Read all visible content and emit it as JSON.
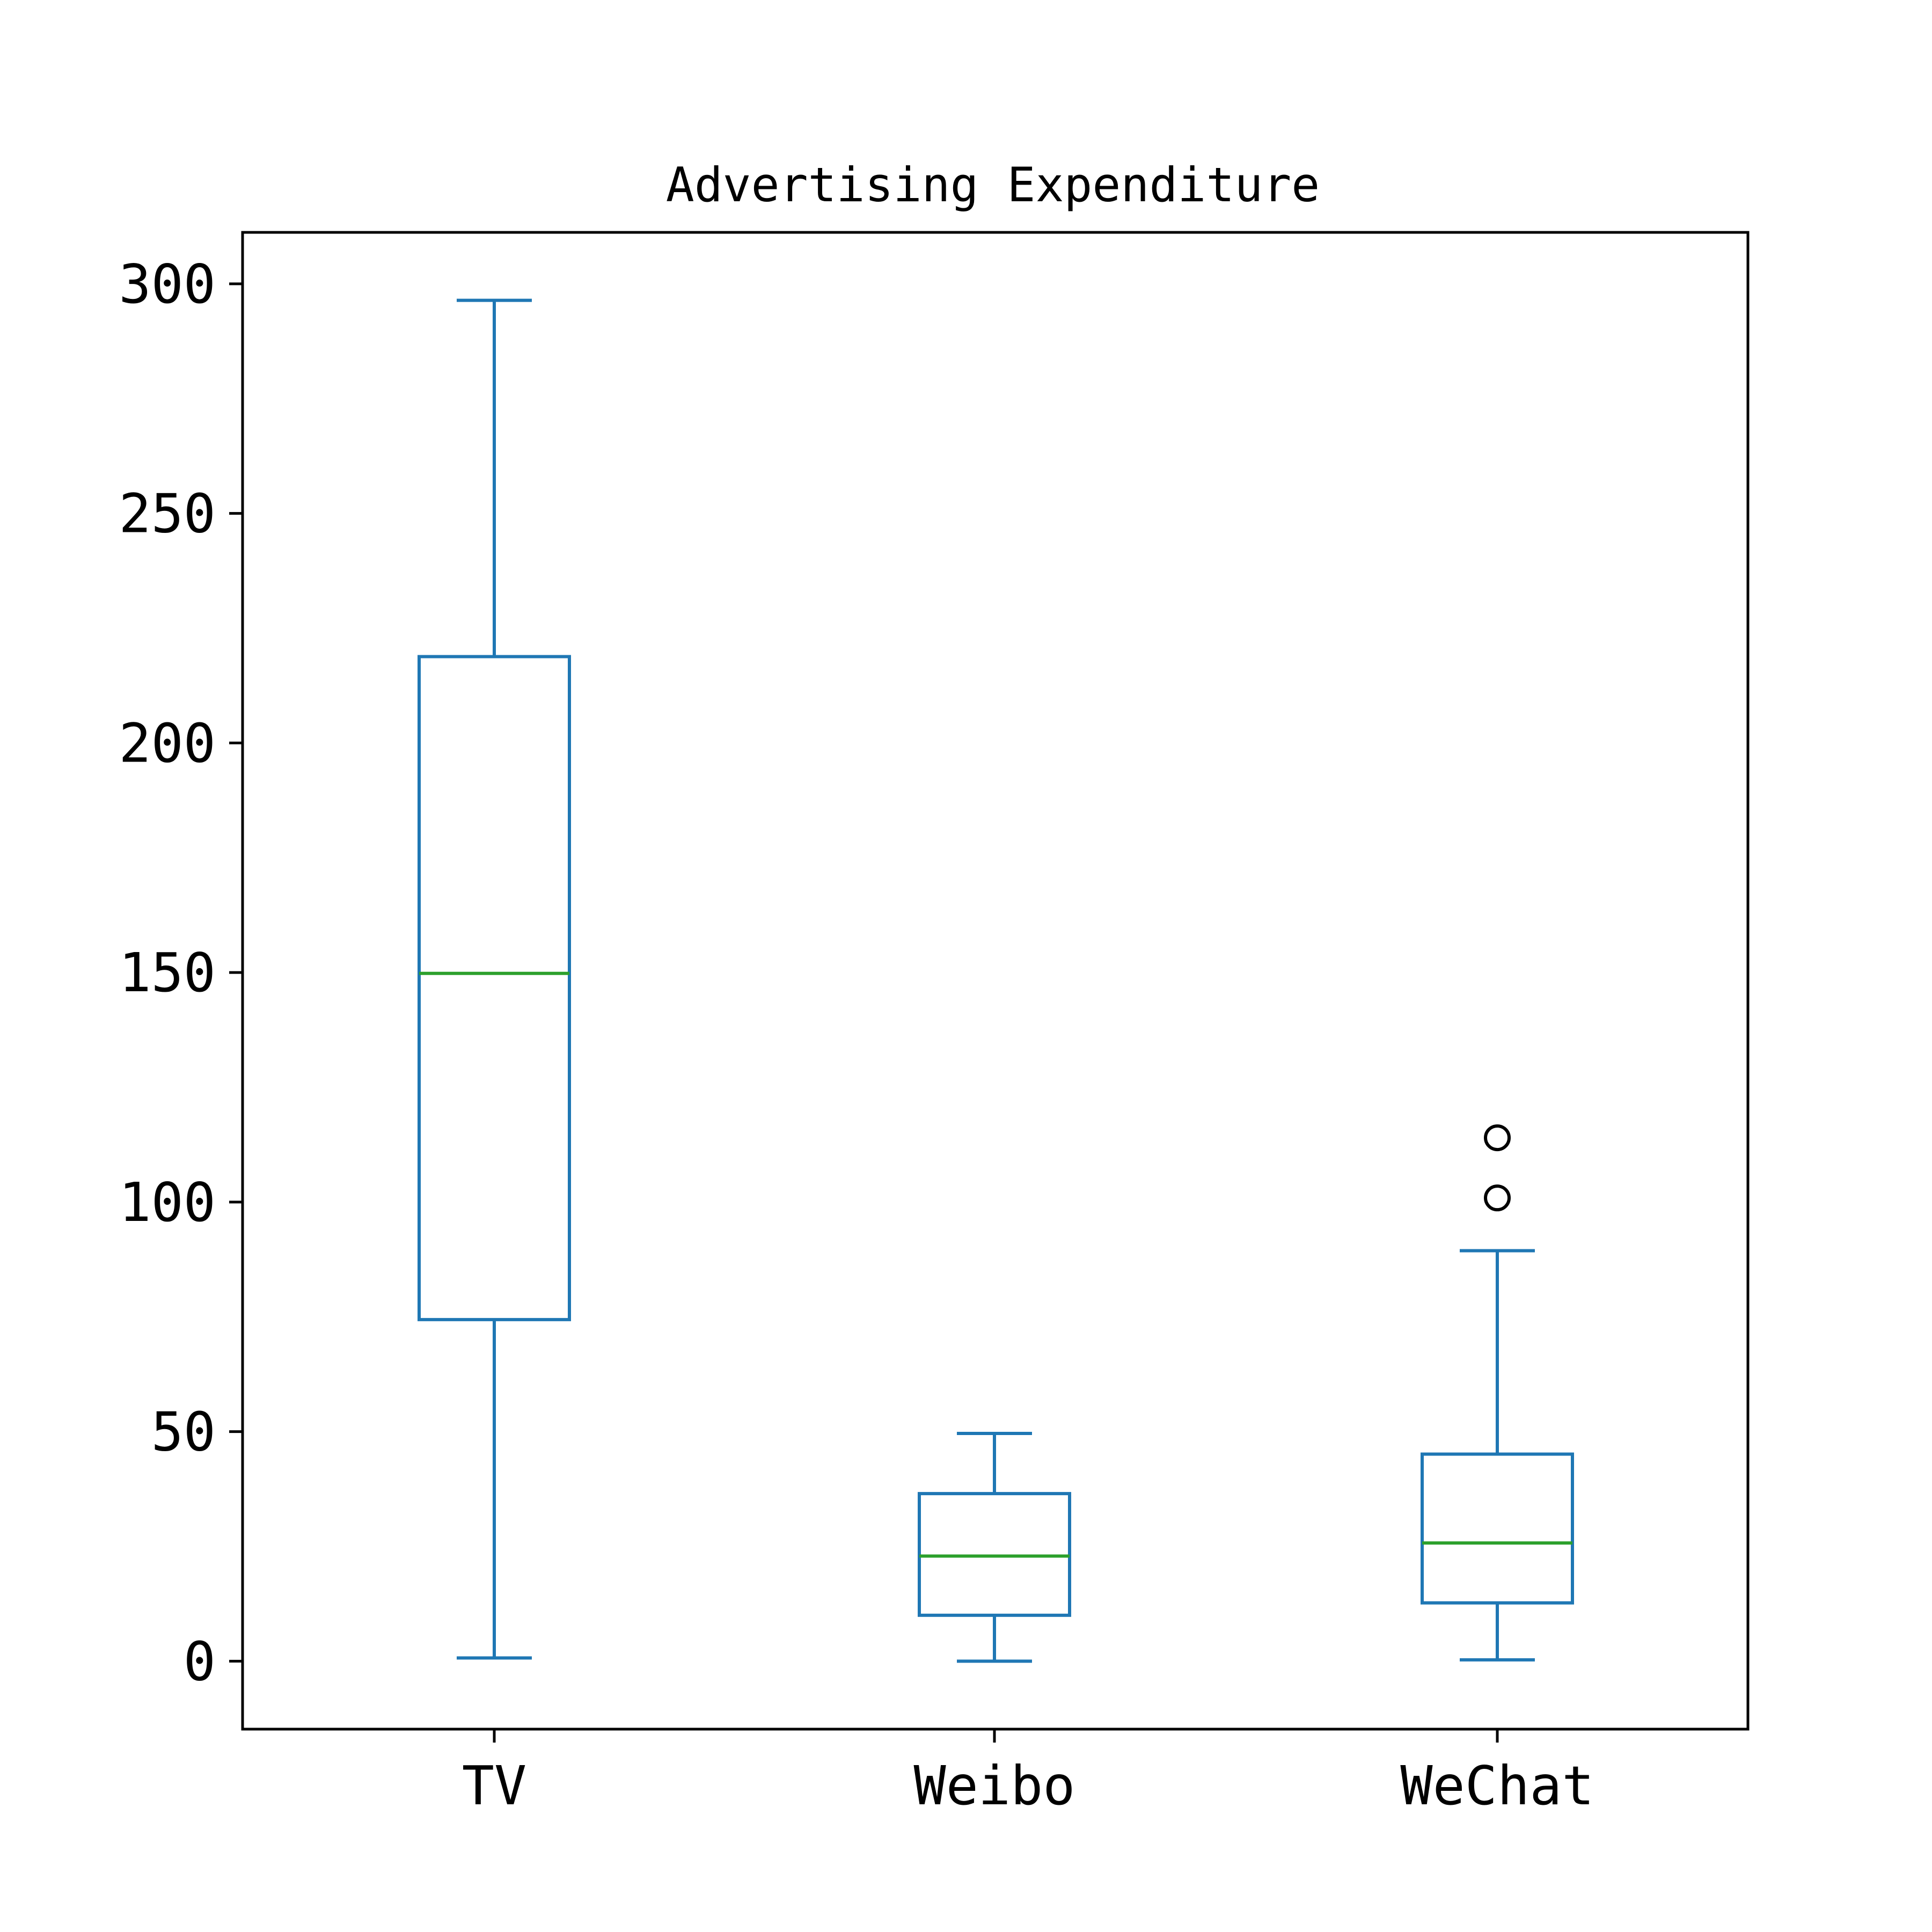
{
  "chart_data": {
    "type": "box",
    "title": "Advertising Expenditure",
    "xlabel": "",
    "ylabel": "",
    "categories": [
      "TV",
      "Weibo",
      "WeChat"
    ],
    "boxes": [
      {
        "label": "TV",
        "whisker_low": 0.7,
        "q1": 74.4,
        "median": 149.8,
        "q3": 218.8,
        "whisker_high": 296.4,
        "outliers": []
      },
      {
        "label": "Weibo",
        "whisker_low": 0.0,
        "q1": 10.0,
        "median": 22.9,
        "q3": 36.5,
        "whisker_high": 49.6,
        "outliers": []
      },
      {
        "label": "WeChat",
        "whisker_low": 0.3,
        "q1": 12.7,
        "median": 25.75,
        "q3": 45.1,
        "whisker_high": 89.4,
        "outliers": [
          100.9,
          114.0
        ]
      }
    ],
    "ylim": [
      -14.8,
      311.2
    ],
    "yticks": [
      0,
      50,
      100,
      150,
      200,
      250,
      300
    ],
    "grid": false,
    "colors": {
      "box": "#1f77b4",
      "median": "#2ca02c",
      "outlier": "#000000",
      "axes": "#000000"
    }
  }
}
